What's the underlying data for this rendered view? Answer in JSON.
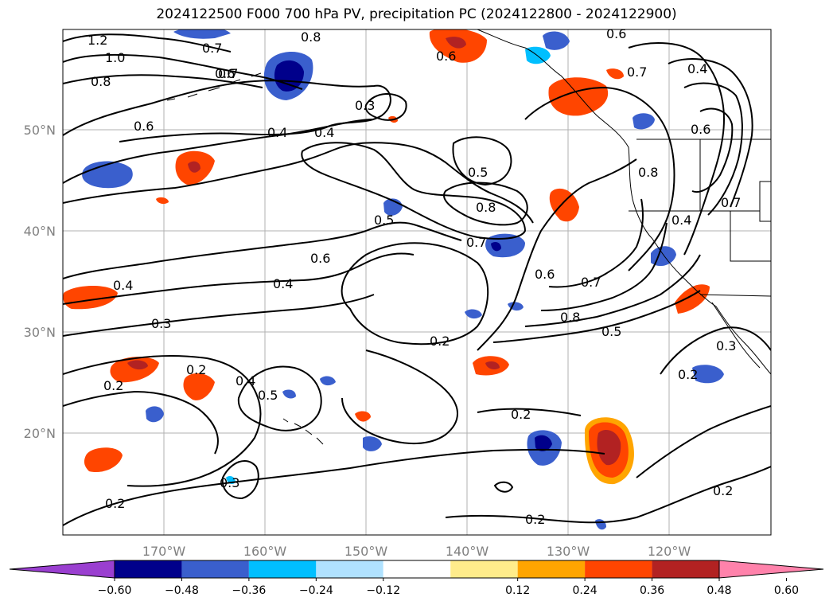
{
  "title": "2024122500 F000 700 hPa PV, precipitation PC (2024122800 - 2024122900)",
  "lon_ticks": [
    "170°W",
    "160°W",
    "150°W",
    "140°W",
    "130°W",
    "120°W"
  ],
  "lat_ticks": [
    "50°N",
    "40°N",
    "30°N",
    "20°N"
  ],
  "colorbar": {
    "colors": [
      "#9a3fd0",
      "#00008b",
      "#3a5fcd",
      "#00bfff",
      "#b0e2ff",
      "#ffffff",
      "#ffec8b",
      "#ffa500",
      "#ff4500",
      "#b22222",
      "#ff82ab"
    ],
    "tick_labels": [
      "−0.60",
      "−0.48",
      "−0.36",
      "−0.24",
      "−0.12",
      "0.12",
      "0.24",
      "0.36",
      "0.48",
      "0.60"
    ]
  },
  "contour_labels": {
    "l01": "1.2",
    "l02": "1.0",
    "l03": "0.8",
    "l04": "0.7",
    "l05": "0.7",
    "l06": "0.6",
    "l07": "0.6",
    "l08": "0.4",
    "l09": "0.4",
    "l10": "0.3",
    "l11": "0.6",
    "l12": "0.4",
    "l13": "0.6",
    "l14": "0.7",
    "l15": "0.5",
    "l16": "0.8",
    "l17": "0.5",
    "l18": "0.7",
    "l19": "0.6",
    "l20": "0.6",
    "l21": "0.4",
    "l22": "0.4",
    "l23": "0.3",
    "l24": "0.6",
    "l25": "0.7",
    "l26": "0.8",
    "l27": "0.5",
    "l28": "0.2",
    "l29": "0.2",
    "l30": "0.2",
    "l31": "0.4",
    "l32": "0.5",
    "l33": "0.2",
    "l34": "0.2",
    "l35": "0.2",
    "l36": "0.2",
    "l37": "0.2",
    "l38": "0.3",
    "l39": "0.4",
    "l40": "0.8",
    "l41": "0.7",
    "l42": "0.8",
    "l43": "0.3"
  }
}
